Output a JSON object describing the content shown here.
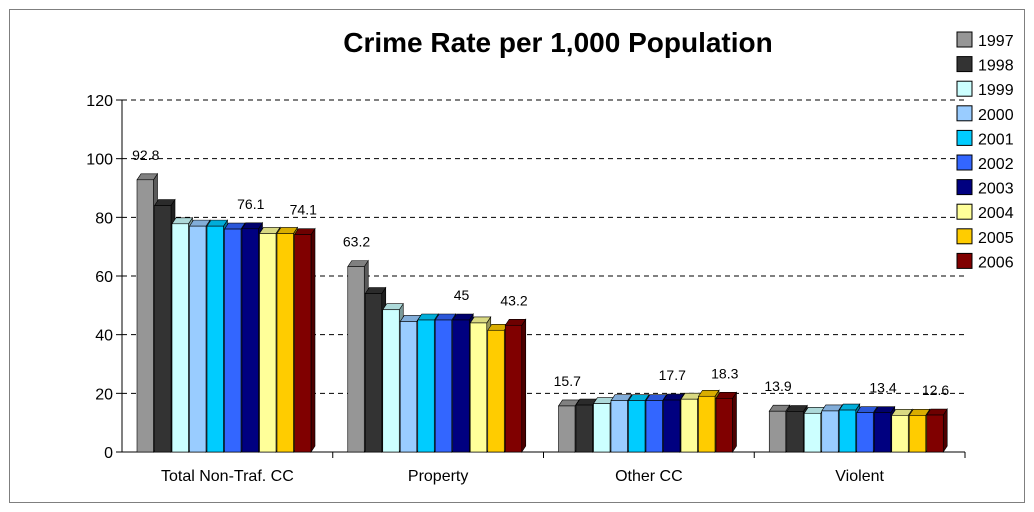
{
  "chart_data": {
    "type": "bar",
    "title": "Crime Rate per 1,000 Population",
    "categories": [
      "Total Non-Traf. CC",
      "Property",
      "Other CC",
      "Violent"
    ],
    "ylim": [
      0,
      120
    ],
    "yticks": [
      0,
      20,
      40,
      60,
      80,
      100,
      120
    ],
    "grid": "horizontal dashed",
    "legend_position": "right",
    "series": [
      {
        "name": "1997",
        "color": "#969696",
        "values": [
          92.8,
          63.2,
          15.7,
          13.9
        ]
      },
      {
        "name": "1998",
        "color": "#333333",
        "values": [
          84.0,
          54.0,
          16.0,
          13.8
        ]
      },
      {
        "name": "1999",
        "color": "#ccffff",
        "values": [
          77.8,
          48.5,
          16.5,
          13.2
        ]
      },
      {
        "name": "2000",
        "color": "#99ccff",
        "values": [
          77.0,
          44.5,
          17.5,
          14.0
        ]
      },
      {
        "name": "2001",
        "color": "#00ccff",
        "values": [
          77.0,
          45.0,
          17.5,
          14.3
        ]
      },
      {
        "name": "2002",
        "color": "#3366ff",
        "values": [
          76.0,
          45.0,
          17.5,
          13.4
        ]
      },
      {
        "name": "2003",
        "color": "#000080",
        "values": [
          76.1,
          45.0,
          17.7,
          13.4
        ]
      },
      {
        "name": "2004",
        "color": "#ffff99",
        "values": [
          74.5,
          44.0,
          18.0,
          12.5
        ]
      },
      {
        "name": "2005",
        "color": "#ffcc00",
        "values": [
          74.5,
          41.5,
          19.0,
          12.5
        ]
      },
      {
        "name": "2006",
        "color": "#800000",
        "values": [
          74.1,
          43.2,
          18.3,
          12.6
        ]
      }
    ],
    "data_labels": [
      {
        "category": 0,
        "series": 0,
        "text": "92.8"
      },
      {
        "category": 0,
        "series": 6,
        "text": "76.1"
      },
      {
        "category": 0,
        "series": 9,
        "text": "74.1"
      },
      {
        "category": 1,
        "series": 0,
        "text": "63.2"
      },
      {
        "category": 1,
        "series": 6,
        "text": "45"
      },
      {
        "category": 1,
        "series": 9,
        "text": "43.2"
      },
      {
        "category": 2,
        "series": 0,
        "text": "15.7"
      },
      {
        "category": 2,
        "series": 6,
        "text": "17.7"
      },
      {
        "category": 2,
        "series": 9,
        "text": "18.3"
      },
      {
        "category": 3,
        "series": 0,
        "text": "13.9"
      },
      {
        "category": 3,
        "series": 6,
        "text": "13.4"
      },
      {
        "category": 3,
        "series": 9,
        "text": "12.6"
      }
    ]
  }
}
